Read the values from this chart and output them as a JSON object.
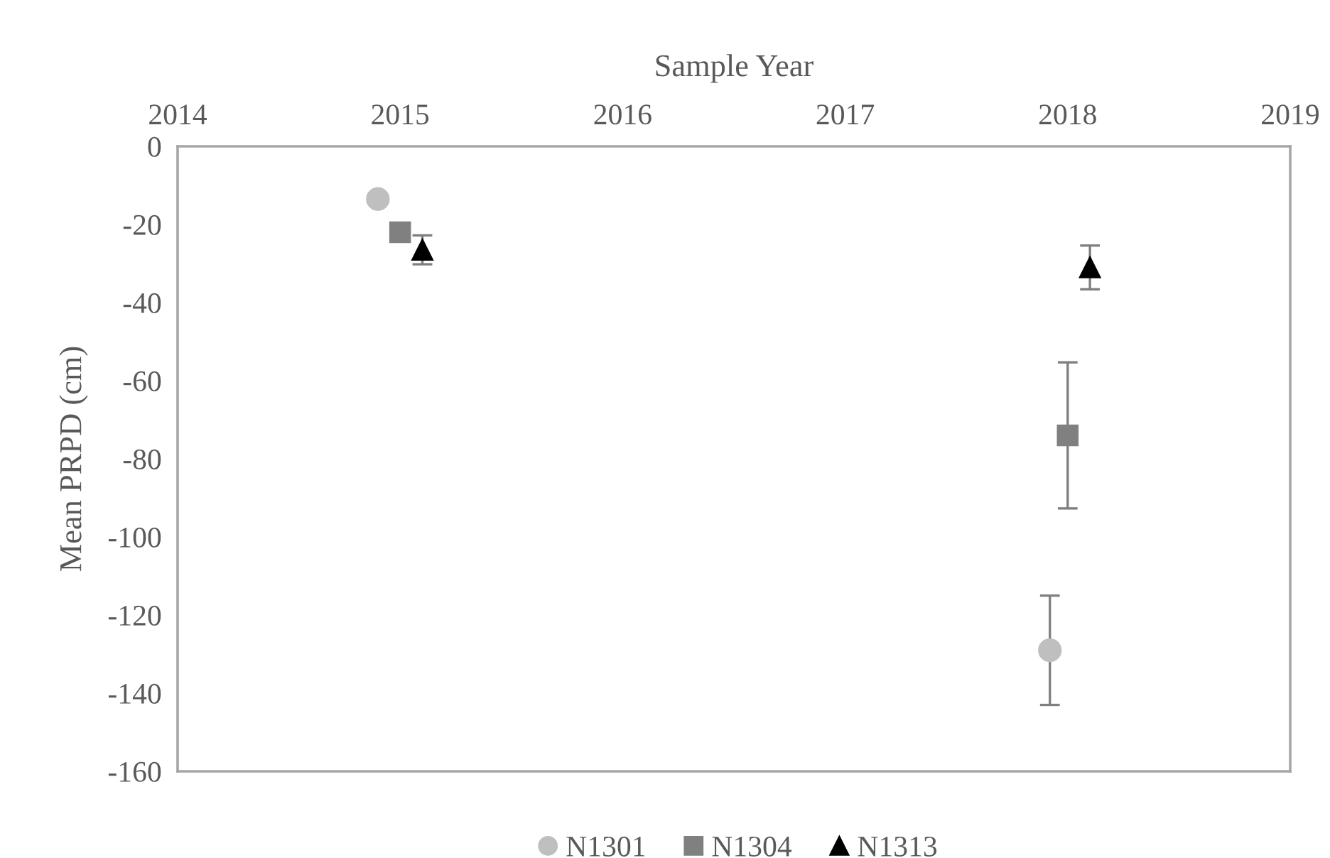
{
  "chart_data": {
    "type": "scatter",
    "xlabel": "Sample Year",
    "ylabel": "Mean PRPD (cm)",
    "xlim": [
      2014,
      2019
    ],
    "xticks": [
      2014,
      2015,
      2016,
      2017,
      2018,
      2019
    ],
    "ylim": [
      -160,
      0
    ],
    "yticks": [
      -160,
      -140,
      -120,
      -100,
      -80,
      -60,
      -40,
      -20,
      0
    ],
    "grid": false,
    "legend": "bottom",
    "series": [
      {
        "name": "N1301",
        "color": "#bfbfbf",
        "marker": "circle",
        "x": [
          2014.9,
          2017.92
        ],
        "values": [
          -13.5,
          -129
        ],
        "errors": [
          null,
          14
        ]
      },
      {
        "name": "N1304",
        "color": "#808080",
        "marker": "square",
        "x": [
          2015.0,
          2018.0
        ],
        "values": [
          -22,
          -74
        ],
        "errors": [
          null,
          18.7
        ]
      },
      {
        "name": "N1313",
        "color": "#000000",
        "marker": "triangle",
        "x": [
          2015.1,
          2018.1
        ],
        "values": [
          -26.5,
          -31
        ],
        "errors": [
          3.7,
          5.6
        ]
      }
    ]
  }
}
